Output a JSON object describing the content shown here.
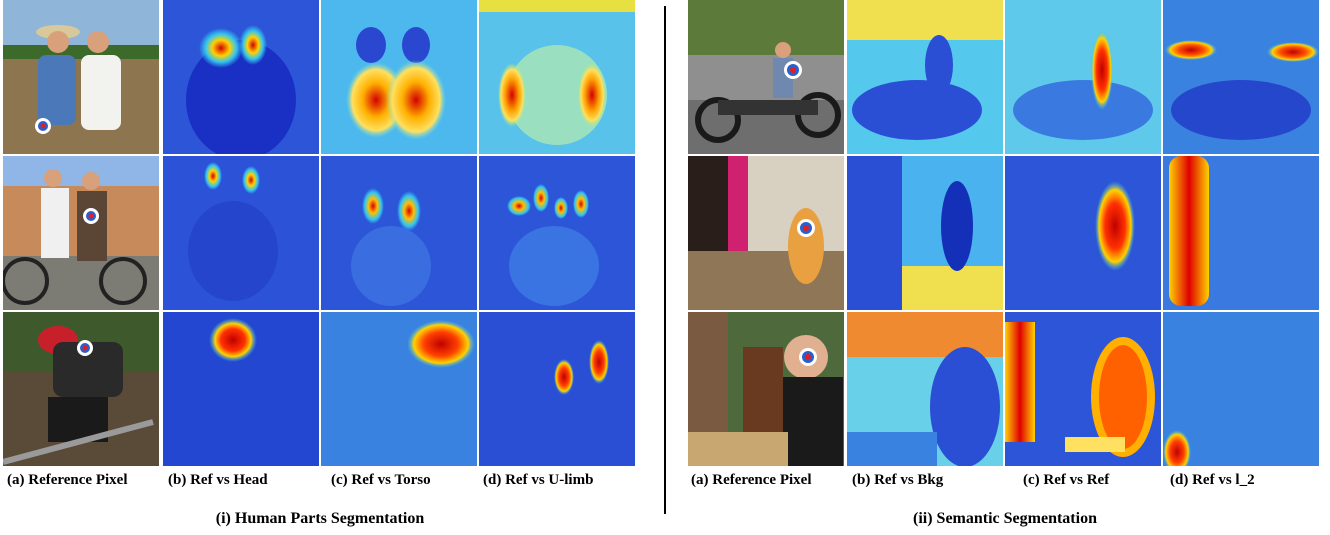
{
  "panels": [
    {
      "caption": "(i) Human Parts Segmentation",
      "columns": [
        "(a) Reference Pixel",
        "(b) Ref vs Head",
        "(c) Ref vs Torso",
        "(d) Ref vs U-limb"
      ]
    },
    {
      "caption": "(ii) Semantic Segmentation",
      "columns": [
        "(a) Reference Pixel",
        "(b) Ref vs Bkg",
        "(c) Ref vs Ref",
        "(d) Ref vs l_2"
      ]
    }
  ],
  "colors": {
    "heatmap_low": "#1a2fc4",
    "heatmap_mid": "#33c6f0",
    "heatmap_high": "#ffd200",
    "heatmap_peak": "#d40000"
  }
}
